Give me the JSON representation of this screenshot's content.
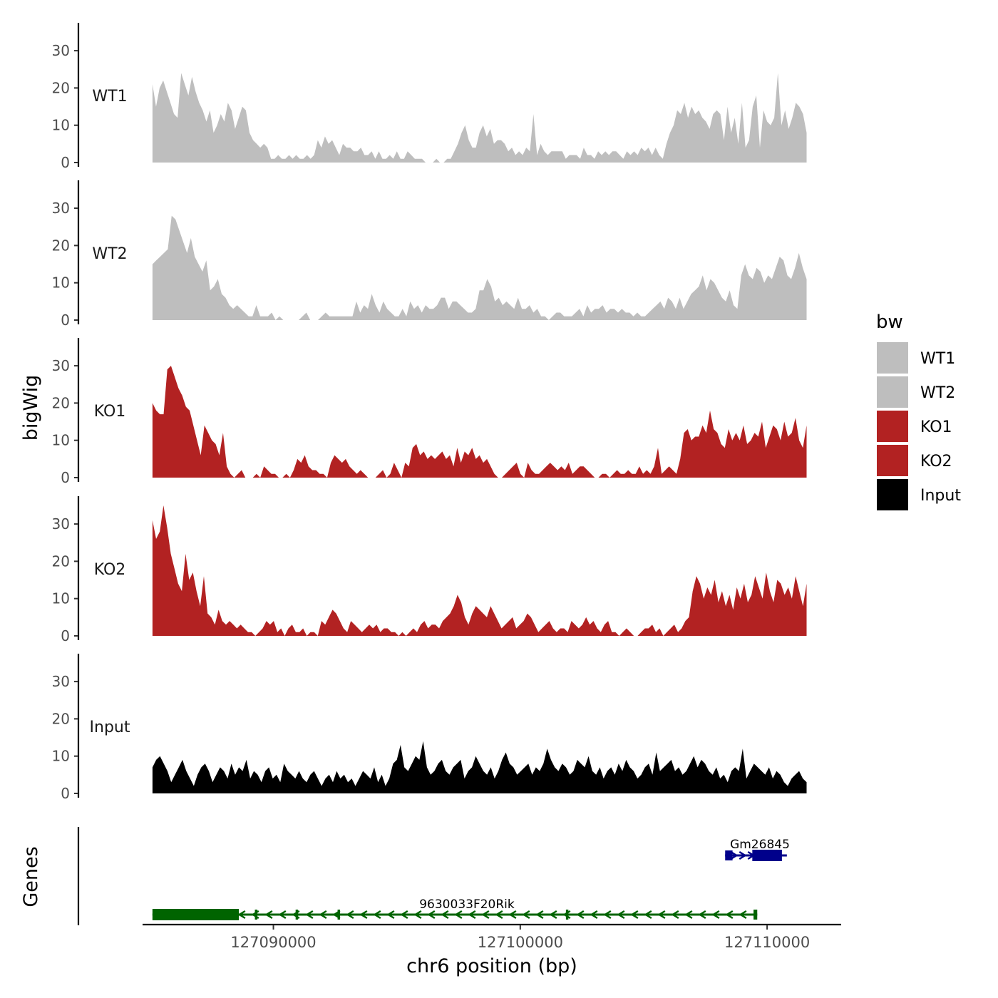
{
  "chart_data": {
    "type": "area",
    "title": "",
    "ylabel": "bigWig",
    "xlabel": "chr6 position (bp)",
    "chromosome": "chr6",
    "xlim": [
      127084700,
      127113000
    ],
    "data_x_range": [
      127085100,
      127111600
    ],
    "ylim": [
      0,
      38
    ],
    "y_ticks": [
      0,
      10,
      20,
      30
    ],
    "y_tick_labels": [
      "0",
      "10",
      "20",
      "30"
    ],
    "x_ticks": [
      127090000,
      127100000,
      127110000
    ],
    "x_tick_labels": [
      "127090000",
      "127100000",
      "127110000"
    ],
    "legend": {
      "title": "bw",
      "position": "right",
      "entries": [
        {
          "label": "WT1",
          "color": "#bebebe"
        },
        {
          "label": "WT2",
          "color": "#bebebe"
        },
        {
          "label": "KO1",
          "color": "#b22222"
        },
        {
          "label": "KO2",
          "color": "#b22222"
        },
        {
          "label": "Input",
          "color": "#000000"
        }
      ]
    },
    "tracks": [
      {
        "name": "WT1",
        "color": "#bebebe",
        "values": [
          21,
          15,
          20,
          22,
          19,
          16,
          13,
          12,
          24,
          21,
          18,
          23,
          19,
          16,
          14,
          11,
          14,
          8,
          10,
          13,
          11,
          16,
          14,
          9,
          12,
          15,
          14,
          8,
          6,
          5,
          4,
          5,
          4,
          1,
          1,
          2,
          1,
          1,
          2,
          1,
          2,
          1,
          1,
          2,
          1,
          2,
          6,
          4,
          7,
          5,
          6,
          4,
          2,
          5,
          4,
          4,
          3,
          3,
          4,
          2,
          2,
          3,
          1,
          3,
          1,
          1,
          2,
          1,
          3,
          1,
          1,
          3,
          2,
          1,
          1,
          1,
          0,
          0,
          0,
          1,
          0,
          0,
          1,
          1,
          3,
          5,
          8,
          10,
          6,
          4,
          4,
          8,
          10,
          7,
          9,
          5,
          6,
          6,
          5,
          3,
          4,
          2,
          3,
          2,
          4,
          3,
          13,
          2,
          5,
          3,
          2,
          3,
          3,
          3,
          3,
          1,
          2,
          2,
          2,
          1,
          4,
          2,
          2,
          1,
          3,
          2,
          3,
          2,
          3,
          3,
          2,
          1,
          3,
          2,
          3,
          2,
          4,
          3,
          4,
          2,
          4,
          2,
          1,
          5,
          8,
          10,
          14,
          13,
          16,
          12,
          15,
          13,
          14,
          12,
          11,
          9,
          13,
          14,
          13,
          6,
          15,
          8,
          12,
          5,
          16,
          4,
          6,
          15,
          18,
          4,
          14,
          11,
          10,
          12,
          24,
          10,
          14,
          9,
          12,
          16,
          15,
          13,
          8
        ]
      },
      {
        "name": "WT2",
        "color": "#bebebe",
        "values": [
          15,
          16,
          17,
          18,
          19,
          28,
          27,
          24,
          21,
          18,
          22,
          17,
          15,
          13,
          16,
          8,
          9,
          11,
          7,
          6,
          4,
          3,
          4,
          3,
          2,
          1,
          1,
          4,
          1,
          1,
          1,
          2,
          0,
          1,
          0,
          0,
          0,
          0,
          0,
          1,
          2,
          0,
          0,
          0,
          1,
          2,
          1,
          1,
          1,
          1,
          1,
          1,
          1,
          5,
          2,
          4,
          3,
          7,
          4,
          2,
          5,
          3,
          2,
          1,
          1,
          3,
          1,
          5,
          3,
          4,
          2,
          4,
          3,
          3,
          4,
          6,
          6,
          3,
          5,
          5,
          4,
          3,
          2,
          2,
          3,
          8,
          8,
          11,
          9,
          5,
          6,
          4,
          5,
          4,
          3,
          6,
          3,
          3,
          4,
          2,
          3,
          1,
          1,
          0,
          1,
          2,
          2,
          1,
          1,
          1,
          2,
          3,
          1,
          4,
          2,
          3,
          3,
          4,
          2,
          3,
          3,
          2,
          3,
          2,
          2,
          1,
          2,
          1,
          1,
          2,
          3,
          4,
          5,
          3,
          6,
          5,
          3,
          6,
          3,
          5,
          7,
          8,
          9,
          12,
          8,
          11,
          10,
          8,
          6,
          5,
          8,
          4,
          3,
          12,
          15,
          12,
          11,
          14,
          13,
          10,
          12,
          11,
          14,
          17,
          16,
          12,
          11,
          14,
          18,
          14,
          11
        ]
      },
      {
        "name": "KO1",
        "color": "#b22222",
        "values": [
          20,
          18,
          17,
          17,
          29,
          30,
          27,
          24,
          22,
          19,
          18,
          14,
          10,
          6,
          14,
          12,
          10,
          9,
          6,
          12,
          3,
          1,
          0,
          1,
          2,
          0,
          0,
          0,
          1,
          0,
          3,
          2,
          1,
          1,
          0,
          0,
          1,
          0,
          2,
          5,
          4,
          6,
          3,
          2,
          2,
          1,
          1,
          0,
          4,
          6,
          5,
          4,
          5,
          3,
          2,
          1,
          2,
          1,
          0,
          0,
          0,
          1,
          2,
          0,
          1,
          4,
          2,
          0,
          4,
          3,
          8,
          9,
          6,
          7,
          5,
          6,
          5,
          6,
          7,
          5,
          6,
          3,
          8,
          4,
          7,
          6,
          8,
          5,
          6,
          4,
          5,
          3,
          1,
          0,
          0,
          1,
          2,
          3,
          4,
          1,
          0,
          4,
          2,
          1,
          1,
          2,
          3,
          4,
          3,
          2,
          3,
          2,
          4,
          1,
          2,
          3,
          3,
          2,
          1,
          0,
          0,
          1,
          1,
          0,
          1,
          2,
          1,
          1,
          2,
          1,
          1,
          3,
          1,
          2,
          1,
          3,
          8,
          1,
          2,
          3,
          2,
          1,
          5,
          12,
          13,
          10,
          11,
          11,
          14,
          12,
          18,
          13,
          12,
          9,
          8,
          13,
          10,
          12,
          10,
          14,
          9,
          10,
          12,
          11,
          15,
          8,
          11,
          14,
          13,
          10,
          15,
          11,
          12,
          16,
          10,
          8,
          14
        ]
      },
      {
        "name": "KO2",
        "color": "#b22222",
        "values": [
          31,
          26,
          28,
          35,
          29,
          22,
          18,
          14,
          12,
          22,
          15,
          17,
          12,
          8,
          16,
          6,
          5,
          3,
          7,
          4,
          3,
          4,
          3,
          2,
          3,
          2,
          1,
          1,
          0,
          1,
          2,
          4,
          3,
          4,
          1,
          2,
          0,
          2,
          3,
          1,
          1,
          2,
          0,
          1,
          1,
          0,
          4,
          3,
          5,
          7,
          6,
          4,
          2,
          1,
          4,
          3,
          2,
          1,
          2,
          3,
          2,
          3,
          1,
          2,
          2,
          1,
          1,
          0,
          1,
          0,
          1,
          2,
          1,
          3,
          4,
          2,
          3,
          3,
          2,
          4,
          5,
          6,
          8,
          11,
          9,
          5,
          3,
          6,
          8,
          7,
          6,
          5,
          8,
          6,
          4,
          2,
          3,
          4,
          5,
          2,
          3,
          4,
          6,
          5,
          3,
          1,
          2,
          3,
          4,
          2,
          1,
          2,
          2,
          1,
          4,
          3,
          2,
          3,
          5,
          3,
          4,
          2,
          1,
          3,
          4,
          1,
          1,
          0,
          1,
          2,
          1,
          0,
          0,
          1,
          2,
          2,
          3,
          1,
          2,
          0,
          1,
          2,
          3,
          1,
          2,
          4,
          5,
          12,
          16,
          14,
          10,
          13,
          11,
          15,
          9,
          12,
          8,
          11,
          7,
          13,
          10,
          14,
          9,
          11,
          16,
          13,
          10,
          17,
          12,
          9,
          15,
          14,
          11,
          13,
          10,
          16,
          12,
          8,
          14
        ]
      },
      {
        "name": "Input",
        "color": "#000000",
        "values": [
          7,
          9,
          10,
          8,
          6,
          3,
          5,
          7,
          9,
          6,
          4,
          2,
          5,
          7,
          8,
          6,
          3,
          5,
          7,
          6,
          4,
          8,
          5,
          7,
          6,
          9,
          4,
          6,
          5,
          3,
          6,
          7,
          4,
          5,
          3,
          8,
          6,
          5,
          4,
          6,
          4,
          3,
          5,
          6,
          4,
          2,
          4,
          5,
          3,
          6,
          4,
          5,
          3,
          4,
          2,
          4,
          6,
          5,
          4,
          7,
          3,
          5,
          2,
          4,
          8,
          9,
          13,
          7,
          6,
          8,
          10,
          9,
          14,
          7,
          5,
          6,
          8,
          9,
          6,
          5,
          7,
          8,
          9,
          4,
          6,
          7,
          10,
          8,
          6,
          5,
          7,
          4,
          6,
          9,
          11,
          8,
          7,
          5,
          6,
          7,
          8,
          5,
          7,
          6,
          8,
          12,
          9,
          7,
          6,
          8,
          7,
          5,
          6,
          9,
          8,
          7,
          10,
          6,
          5,
          7,
          4,
          6,
          7,
          5,
          8,
          6,
          9,
          7,
          6,
          4,
          5,
          7,
          8,
          5,
          11,
          6,
          7,
          8,
          9,
          6,
          7,
          5,
          6,
          8,
          10,
          7,
          9,
          8,
          6,
          5,
          7,
          4,
          5,
          3,
          6,
          7,
          6,
          12,
          4,
          6,
          8,
          7,
          6,
          5,
          7,
          4,
          6,
          5,
          3,
          2,
          4,
          5,
          6,
          4,
          3
        ]
      }
    ],
    "gene_panel_label": "Genes",
    "genes": [
      {
        "name": "9630033F20Rik",
        "start": 127085100,
        "end": 127109600,
        "strand": "-",
        "color": "#006400",
        "exons": [
          [
            127085100,
            127088600
          ],
          [
            127089250,
            127089350
          ],
          [
            127090900,
            127091000
          ],
          [
            127092600,
            127092700
          ],
          [
            127101850,
            127101950
          ],
          [
            127109450,
            127109600
          ]
        ]
      },
      {
        "name": "Gm26845",
        "start": 127108300,
        "end": 127110800,
        "strand": "+",
        "color": "#00008b",
        "exons": [
          [
            127108300,
            127108600
          ],
          [
            127109400,
            127110600
          ]
        ]
      }
    ]
  }
}
